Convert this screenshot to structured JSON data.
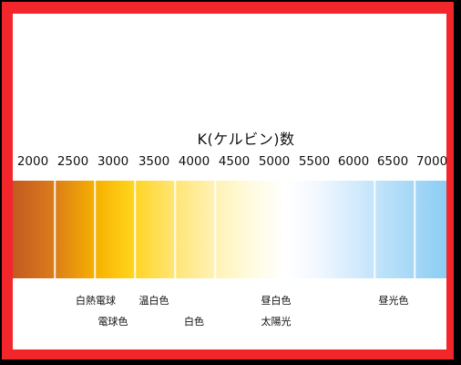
{
  "title": "K(ケルビン)数",
  "scale": {
    "ticks": [
      "2000",
      "2500",
      "3000",
      "3500",
      "4000",
      "4500",
      "5000",
      "5500",
      "6000",
      "6500",
      "7000"
    ]
  },
  "labels": {
    "incandescent": "白熱電球",
    "bulb_color": "電球色",
    "warm_white": "温白色",
    "white": "白色",
    "neutral_white": "昼白色",
    "sunlight": "太陽光",
    "daylight": "昼光色"
  },
  "colors": {
    "frame": "#f2262b",
    "warm_start": "#c25a22",
    "yellow": "#f6b000",
    "neutral": "#ffffff",
    "cool_end": "#8ccdf4"
  }
}
